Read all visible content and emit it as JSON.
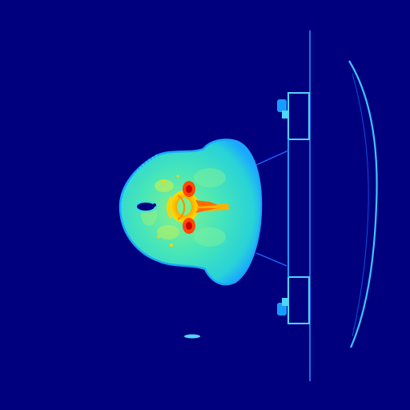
{
  "image": {
    "kind": "ct-axial-slice",
    "colormap": "jet",
    "colors": {
      "background": "#00007f",
      "soft_tissue": "#33e0c8",
      "soft_tissue_edge": "#1fb4ff",
      "fat": "#9cf07a",
      "bone": "#ffd400",
      "dense_bone": "#ff5a00",
      "cortical": "#d20000",
      "air": "#00007f",
      "hardware": "#1a9bff",
      "hardware_bright": "#4fd6ff"
    }
  }
}
